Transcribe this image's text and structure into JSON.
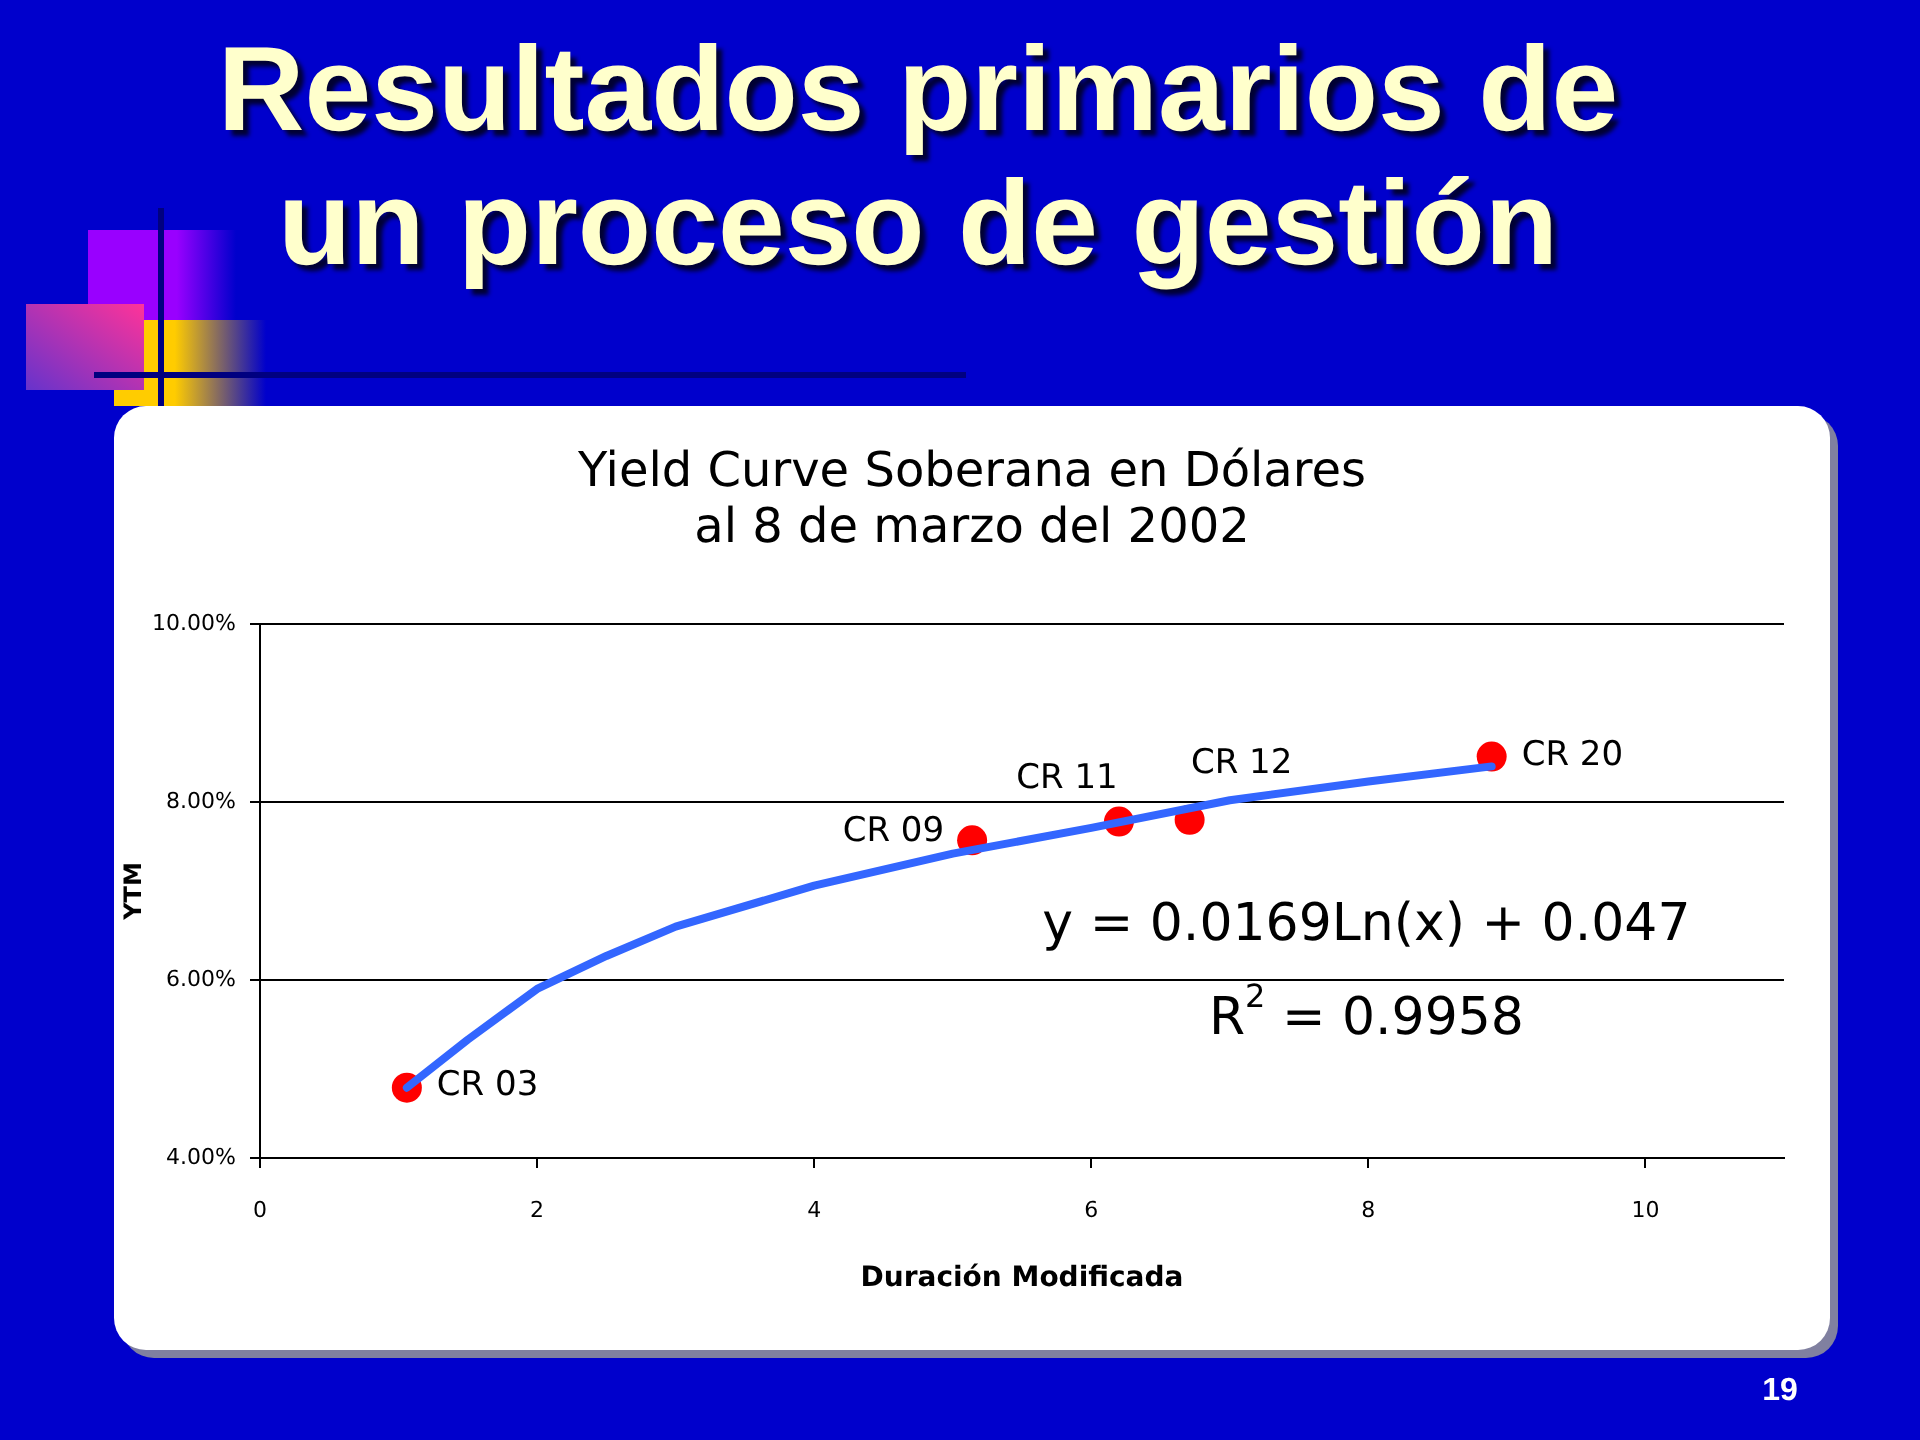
{
  "chart_data": {
    "type": "scatter",
    "title": "Resultados primarios de un proceso de gestión",
    "subtitle": "Yield Curve Soberana en Dólares al 8 de marzo del 2002",
    "xlabel": "Duración Modificada",
    "ylabel": "YTM",
    "series": [
      {
        "type": "scatter",
        "color": "#ff0000",
        "marker": "circle",
        "x": [
          1.06,
          5.14,
          6.2,
          6.71,
          8.89
        ],
        "values": [
          4.79,
          7.57,
          7.78,
          7.8,
          8.51
        ]
      },
      {
        "type": "line",
        "color": "#3366ff",
        "marker": "none",
        "line_style": "solid",
        "x": [
          1.06,
          1.5,
          2,
          2.5,
          3,
          4,
          5,
          6,
          7,
          8,
          8.89
        ],
        "values": [
          4.79,
          5.33,
          5.9,
          6.27,
          6.6,
          7.06,
          7.42,
          7.71,
          8.02,
          8.23,
          8.4
        ]
      }
    ],
    "xlim": [
      0,
      11
    ],
    "xticks": [
      0,
      2,
      4,
      6,
      8,
      10
    ],
    "ylim": [
      4,
      10
    ],
    "yticks": [
      {
        "value": 4,
        "label": "4.00%"
      },
      {
        "value": 6,
        "label": "6.00%"
      },
      {
        "value": 8,
        "label": "8.00%"
      },
      {
        "value": 10,
        "label": "10.00%"
      }
    ],
    "grid": "y",
    "legend": false,
    "annotations": [
      {
        "text": "CR 03",
        "x": 1.06,
        "y": 4.79
      },
      {
        "text": "CR 09",
        "x": 5.14,
        "y": 7.57
      },
      {
        "text": "CR 11",
        "x": 6.2,
        "y": 7.78
      },
      {
        "text": "CR 12",
        "x": 6.71,
        "y": 7.8
      },
      {
        "text": "CR 20",
        "x": 8.89,
        "y": 8.51
      },
      "y = 0.0169Ln(x) + 0.047",
      "R$^{2}$ = 0.9958",
      "19"
    ]
  }
}
